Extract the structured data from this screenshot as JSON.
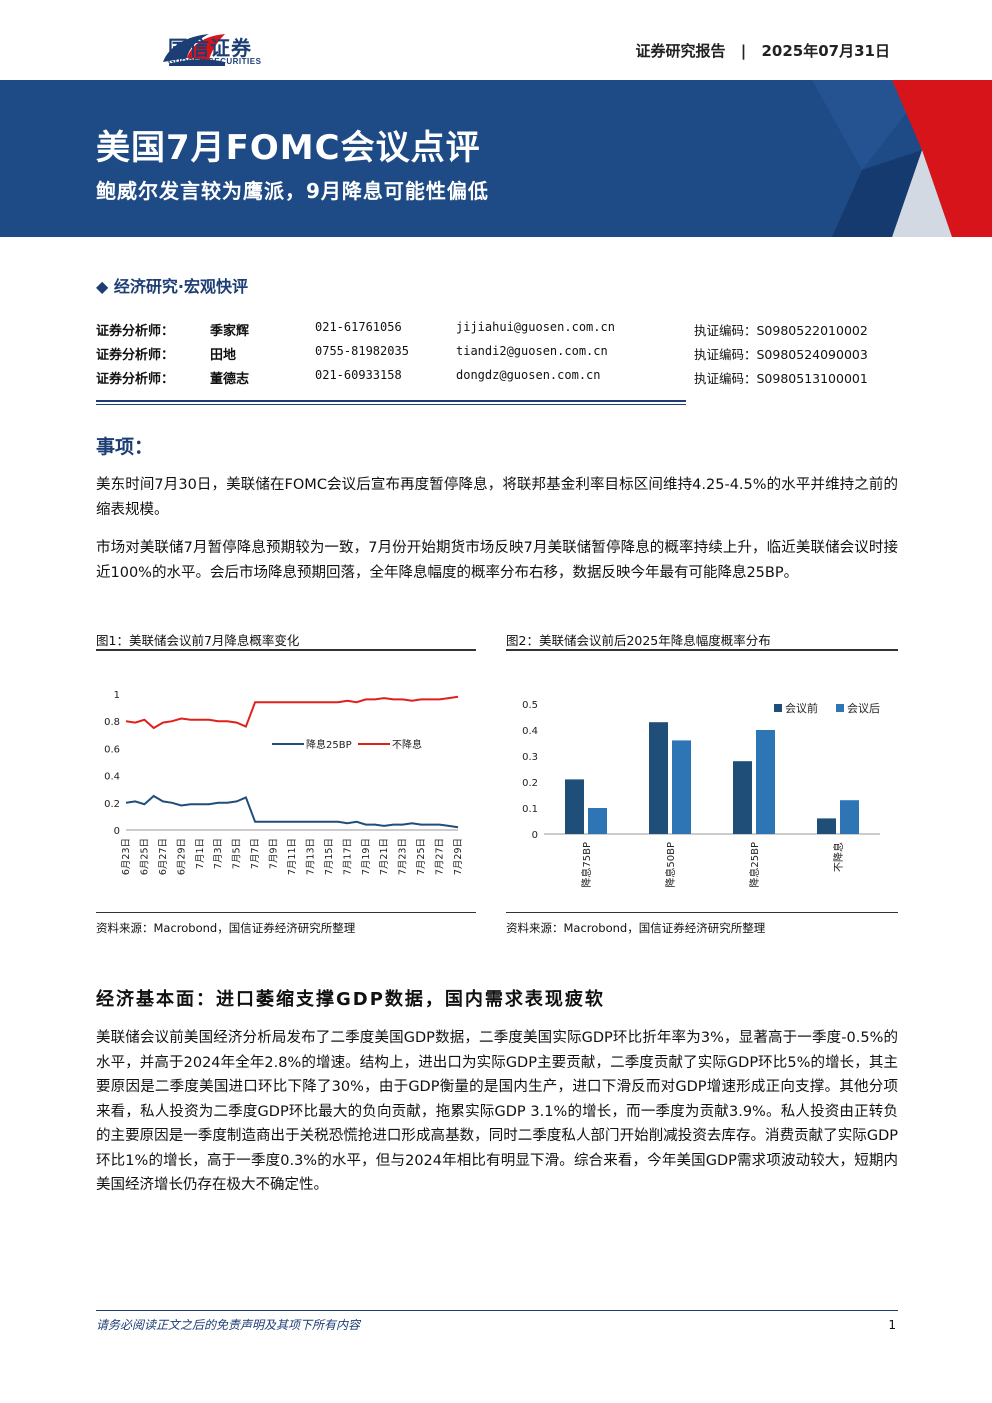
{
  "header": {
    "brand": "国信证券",
    "brand_en": "GUOSEN SECURITIES",
    "report_type": "证券研究报告",
    "date": "2025年07月31日"
  },
  "banner": {
    "title": "美国7月FOMC会议点评",
    "subtitle": "鲍威尔发言较为鹰派，9月降息可能性偏低"
  },
  "category": "◆ 经济研究·宏观快评",
  "analysts": [
    {
      "role": "证券分析师：",
      "name": "季家辉",
      "phone": "021-61761056",
      "email": "jijiahui@guosen.com.cn",
      "cert": "执证编码：S0980522010002"
    },
    {
      "role": "证券分析师：",
      "name": "田地",
      "phone": "0755-81982035",
      "email": "tiandi2@guosen.com.cn",
      "cert": "执证编码：S0980524090003"
    },
    {
      "role": "证券分析师：",
      "name": "董德志",
      "phone": "021-60933158",
      "email": "dongdz@guosen.com.cn",
      "cert": "执证编码：S0980513100001"
    }
  ],
  "section1": {
    "heading": "事项：",
    "p1": "美东时间7月30日，美联储在FOMC会议后宣布再度暂停降息，将联邦基金利率目标区间维持4.25-4.5%的水平并维持之前的缩表规模。",
    "p2": "市场对美联储7月暂停降息预期较为一致，7月份开始期货市场反映7月美联储暂停降息的概率持续上升，临近美联储会议时接近100%的水平。会后市场降息预期回落，全年降息幅度的概率分布右移，数据反映今年最有可能降息25BP。"
  },
  "figures": {
    "fig1_title": "图1：美联储会议前7月降息概率变化",
    "fig2_title": "图2：美联储会议前后2025年降息幅度概率分布",
    "fig1_source": "资料来源：Macrobond，国信证券经济研究所整理",
    "fig2_source": "资料来源：Macrobond，国信证券经济研究所整理"
  },
  "chart_data": [
    {
      "type": "line",
      "x": [
        "6月23日",
        "6月24日",
        "6月25日",
        "6月26日",
        "6月27日",
        "6月28日",
        "6月29日",
        "6月30日",
        "7月1日",
        "7月2日",
        "7月3日",
        "7月4日",
        "7月5日",
        "7月6日",
        "7月7日",
        "7月8日",
        "7月9日",
        "7月10日",
        "7月11日",
        "7月12日",
        "7月13日",
        "7月14日",
        "7月15日",
        "7月16日",
        "7月17日",
        "7月18日",
        "7月19日",
        "7月20日",
        "7月21日",
        "7月22日",
        "7月23日",
        "7月24日",
        "7月25日",
        "7月26日",
        "7月27日",
        "7月28日",
        "7月29日"
      ],
      "x_tick_labels": [
        "6月23日",
        "6月25日",
        "6月27日",
        "6月29日",
        "7月1日",
        "7月3日",
        "7月5日",
        "7月7日",
        "7月9日",
        "7月11日",
        "7月13日",
        "7月15日",
        "7月17日",
        "7月19日",
        "7月21日",
        "7月23日",
        "7月25日",
        "7月27日",
        "7月29日"
      ],
      "series": [
        {
          "name": "降息25BP",
          "color": "#1f4e79",
          "values": [
            0.2,
            0.21,
            0.19,
            0.25,
            0.21,
            0.2,
            0.18,
            0.19,
            0.19,
            0.19,
            0.2,
            0.2,
            0.21,
            0.24,
            0.06,
            0.06,
            0.06,
            0.06,
            0.06,
            0.06,
            0.06,
            0.06,
            0.06,
            0.06,
            0.05,
            0.06,
            0.04,
            0.04,
            0.03,
            0.04,
            0.04,
            0.05,
            0.04,
            0.04,
            0.04,
            0.03,
            0.02
          ]
        },
        {
          "name": "不降息",
          "color": "#e0201b",
          "values": [
            0.8,
            0.79,
            0.81,
            0.75,
            0.79,
            0.8,
            0.82,
            0.81,
            0.81,
            0.81,
            0.8,
            0.8,
            0.79,
            0.76,
            0.94,
            0.94,
            0.94,
            0.94,
            0.94,
            0.94,
            0.94,
            0.94,
            0.94,
            0.94,
            0.95,
            0.94,
            0.96,
            0.96,
            0.97,
            0.96,
            0.96,
            0.95,
            0.96,
            0.96,
            0.96,
            0.97,
            0.98
          ]
        }
      ],
      "ylim": [
        0,
        1
      ],
      "yticks": [
        "0",
        "0.2",
        "0.4",
        "0.6",
        "0.8",
        "1"
      ],
      "legend_placement": "center-right"
    },
    {
      "type": "bar",
      "categories": [
        "降息75BP",
        "降息50BP",
        "降息25BP",
        "不降息"
      ],
      "series": [
        {
          "name": "会议前",
          "color": "#1f4e79",
          "values": [
            0.21,
            0.43,
            0.28,
            0.06
          ]
        },
        {
          "name": "会议后",
          "color": "#2e75b6",
          "values": [
            0.1,
            0.36,
            0.4,
            0.13
          ]
        }
      ],
      "ylim": [
        0,
        0.5
      ],
      "yticks": [
        "0",
        "0.1",
        "0.2",
        "0.3",
        "0.4",
        "0.5"
      ],
      "legend_placement": "top-right"
    }
  ],
  "section2": {
    "heading": "经济基本面：进口萎缩支撑GDP数据，国内需求表现疲软",
    "p1": "美联储会议前美国经济分析局发布了二季度美国GDP数据，二季度美国实际GDP环比折年率为3%，显著高于一季度-0.5%的水平，并高于2024年全年2.8%的增速。结构上，进出口为实际GDP主要贡献，二季度贡献了实际GDP环比5%的增长，其主要原因是二季度美国进口环比下降了30%，由于GDP衡量的是国内生产，进口下滑反而对GDP增速形成正向支撑。其他分项来看，私人投资为二季度GDP环比最大的负向贡献，拖累实际GDP 3.1%的增长，而一季度为贡献3.9%。私人投资由正转负的主要原因是一季度制造商出于关税恐慌抢进口形成高基数，同时二季度私人部门开始削减投资去库存。消费贡献了实际GDP环比1%的增长，高于一季度0.3%的水平，但与2024年相比有明显下滑。综合来看，今年美国GDP需求项波动较大，短期内美国经济增长仍存在极大不确定性。"
  },
  "footer": {
    "disclaimer": "请务必阅读正文之后的免责声明及其项下所有内容",
    "page": "1"
  }
}
